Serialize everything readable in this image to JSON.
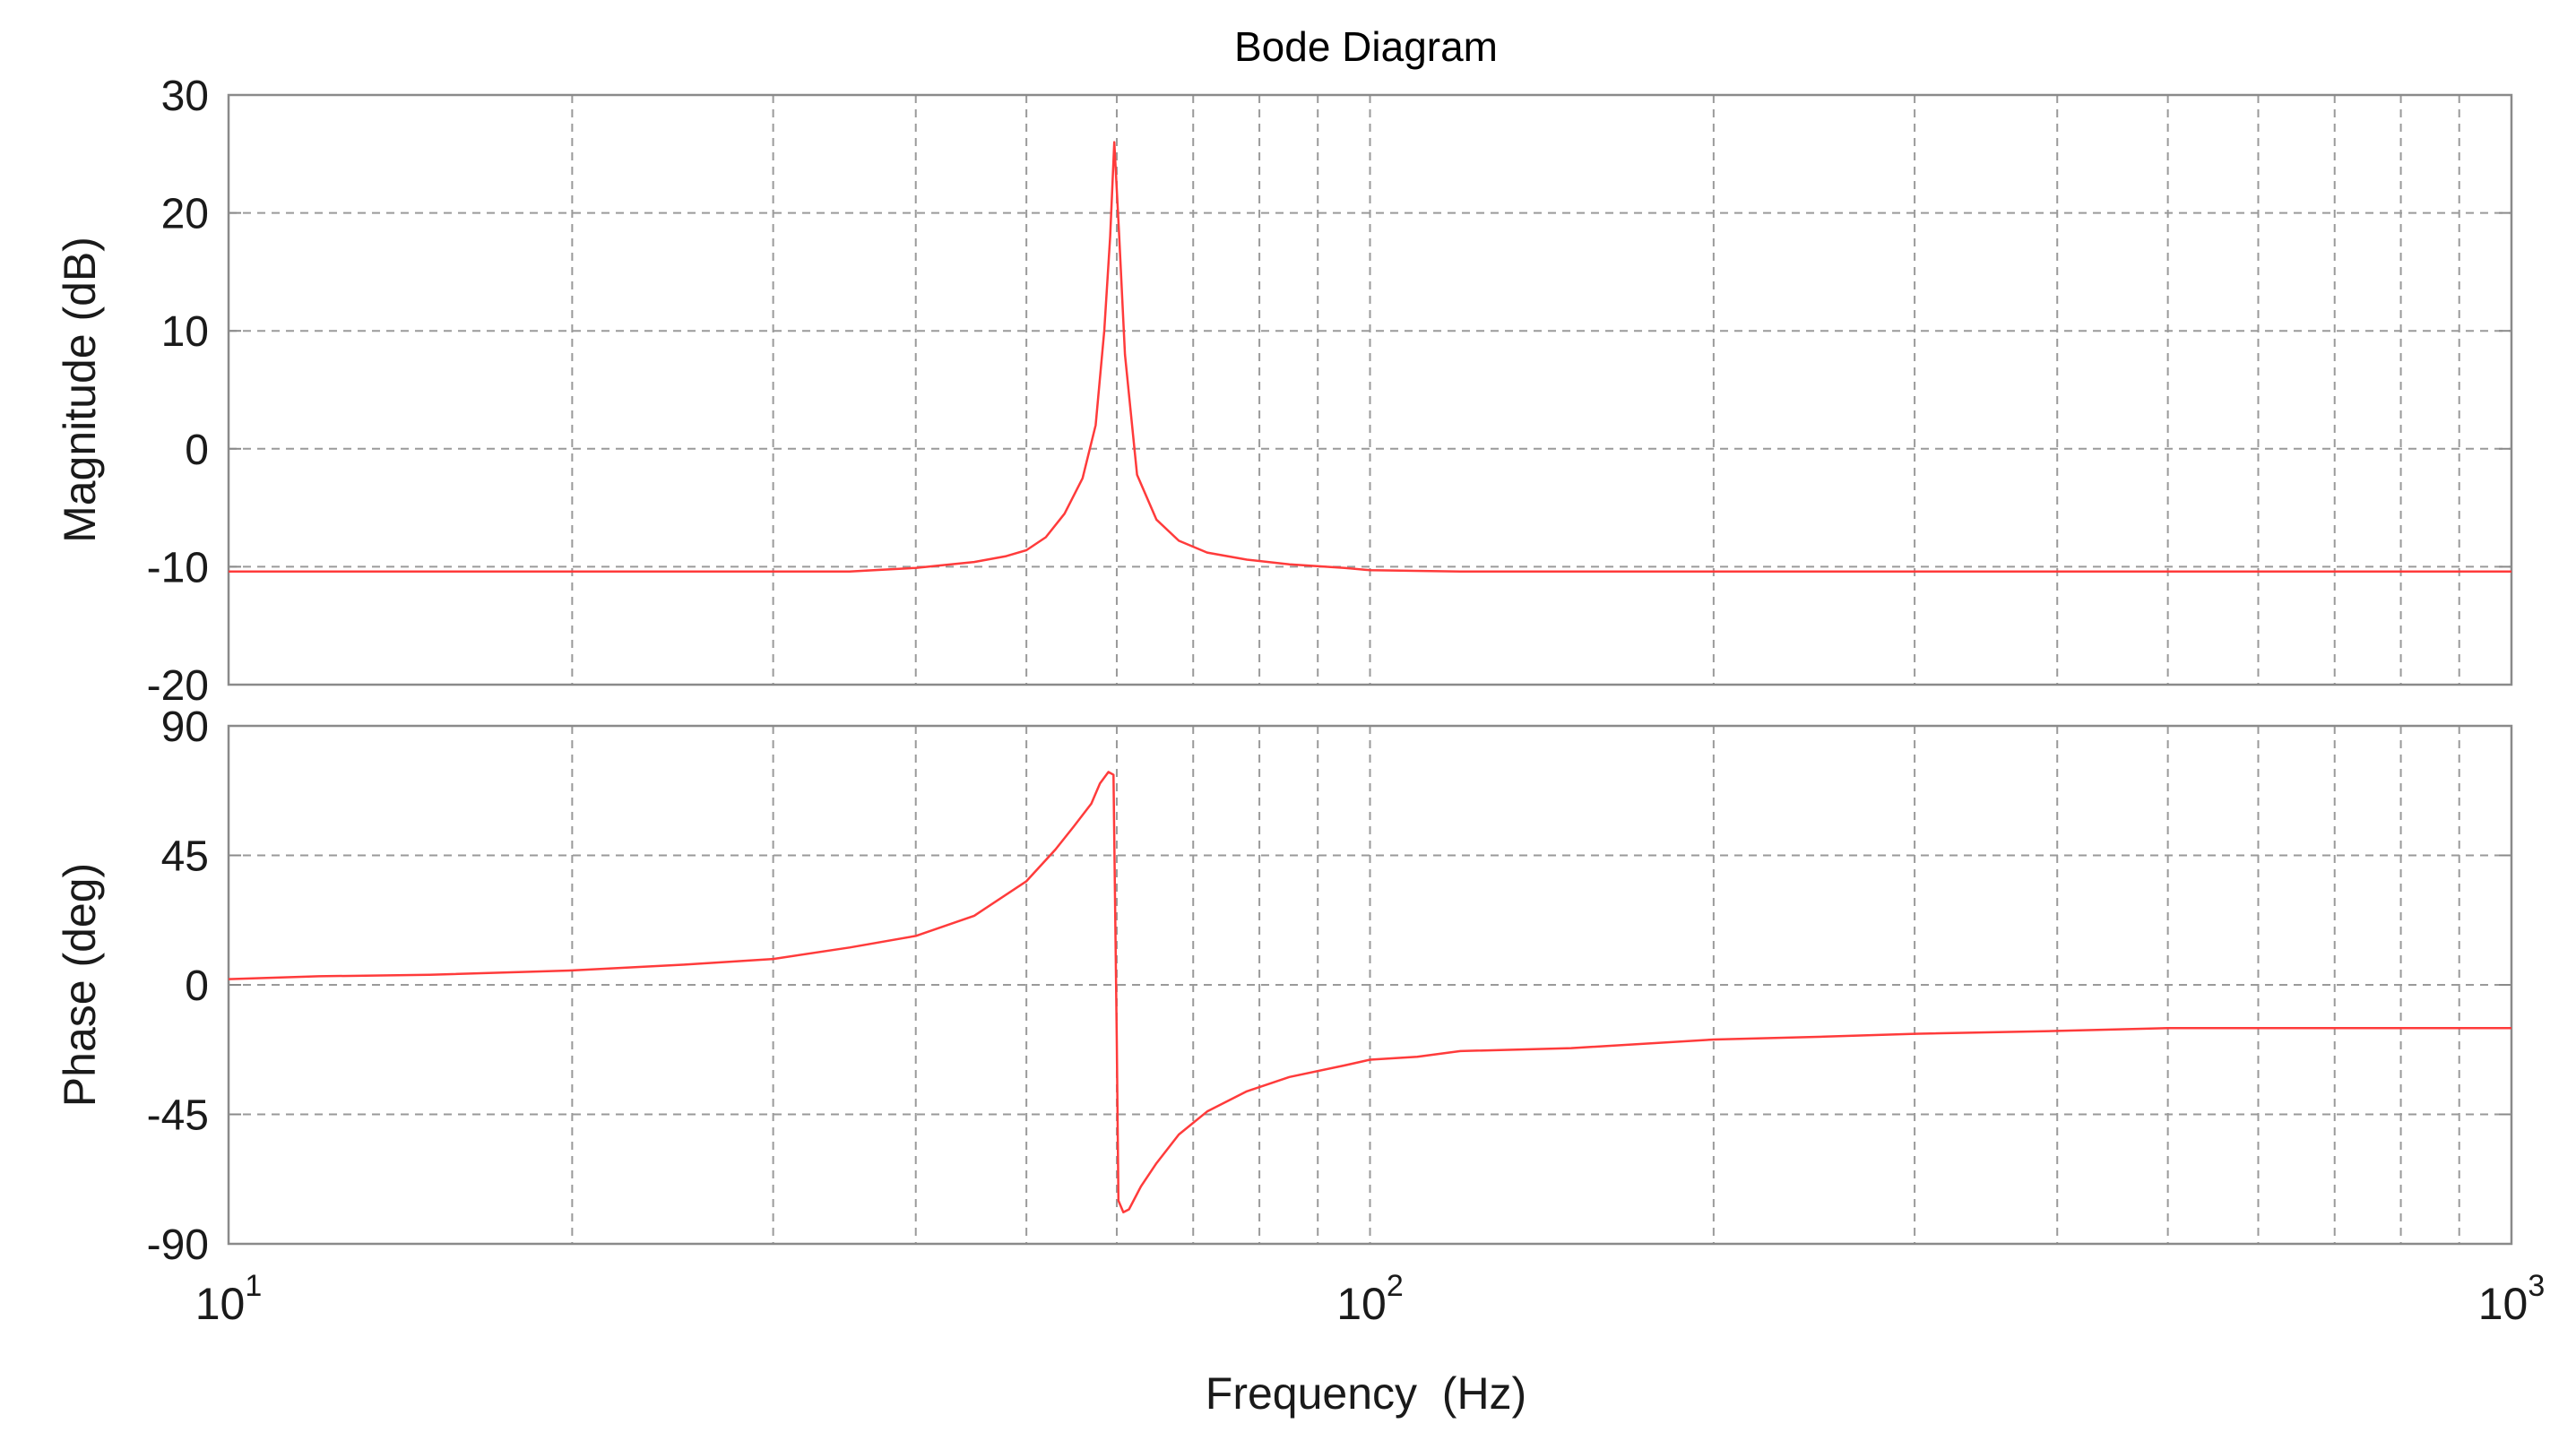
{
  "chart_data": {
    "type": "line",
    "title": "Bode Diagram",
    "xlabel": "Frequency  (Hz)",
    "xscale": "log",
    "xlim": [
      10,
      1000
    ],
    "x_tick_labels": [
      {
        "value": 10,
        "base": "10",
        "exp": "1"
      },
      {
        "value": 100,
        "base": "10",
        "exp": "2"
      },
      {
        "value": 1000,
        "base": "10",
        "exp": "3"
      }
    ],
    "grid": true,
    "colors": {
      "line": "#ff3b3b",
      "grid": "#9a9a9a",
      "frame": "#8a8a8a",
      "text": "#1a1a1a"
    },
    "panels": [
      {
        "ylabel": "Magnitude (dB)",
        "ylim": [
          -20,
          30
        ],
        "yticks": [
          30,
          20,
          10,
          0,
          -10,
          -20
        ],
        "ytick_labels": [
          "30",
          "20",
          "10",
          "0",
          "-10",
          "-20"
        ],
        "points": [
          [
            10,
            -10.4
          ],
          [
            20,
            -10.4
          ],
          [
            35,
            -10.4
          ],
          [
            40,
            -10.1
          ],
          [
            45,
            -9.6
          ],
          [
            48,
            -9.1
          ],
          [
            50,
            -8.6
          ],
          [
            52,
            -7.5
          ],
          [
            54,
            -5.5
          ],
          [
            56,
            -2.5
          ],
          [
            57.5,
            2
          ],
          [
            58.5,
            10
          ],
          [
            59.2,
            18
          ],
          [
            59.7,
            26
          ],
          [
            60.3,
            18
          ],
          [
            61,
            8
          ],
          [
            62.5,
            -2.2
          ],
          [
            65,
            -6
          ],
          [
            68,
            -7.8
          ],
          [
            72,
            -8.8
          ],
          [
            78,
            -9.4
          ],
          [
            85,
            -9.8
          ],
          [
            95,
            -10.1
          ],
          [
            100,
            -10.3
          ],
          [
            120,
            -10.4
          ],
          [
            200,
            -10.4
          ],
          [
            500,
            -10.4
          ],
          [
            1000,
            -10.4
          ]
        ]
      },
      {
        "ylabel": "Phase (deg)",
        "ylim": [
          -90,
          90
        ],
        "yticks": [
          90,
          45,
          0,
          -45,
          -90
        ],
        "ytick_labels": [
          "90",
          "45",
          "0",
          "-45",
          "-90"
        ],
        "points": [
          [
            10,
            2
          ],
          [
            12,
            3
          ],
          [
            15,
            3.5
          ],
          [
            20,
            5
          ],
          [
            25,
            7
          ],
          [
            30,
            9
          ],
          [
            35,
            13
          ],
          [
            40,
            17
          ],
          [
            45,
            24
          ],
          [
            50,
            36
          ],
          [
            53,
            47
          ],
          [
            55,
            55
          ],
          [
            57,
            63
          ],
          [
            58,
            70
          ],
          [
            59,
            74
          ],
          [
            59.6,
            73
          ],
          [
            60,
            -20
          ],
          [
            60.2,
            -75
          ],
          [
            60.8,
            -79
          ],
          [
            61.5,
            -78
          ],
          [
            63,
            -70
          ],
          [
            65,
            -62
          ],
          [
            68,
            -52
          ],
          [
            72,
            -44
          ],
          [
            78,
            -37
          ],
          [
            85,
            -32
          ],
          [
            95,
            -28
          ],
          [
            100,
            -26
          ],
          [
            110,
            -25
          ],
          [
            120,
            -23
          ],
          [
            150,
            -22
          ],
          [
            200,
            -19
          ],
          [
            250,
            -18
          ],
          [
            300,
            -17
          ],
          [
            400,
            -16
          ],
          [
            500,
            -15
          ],
          [
            1000,
            -15
          ]
        ]
      }
    ]
  }
}
